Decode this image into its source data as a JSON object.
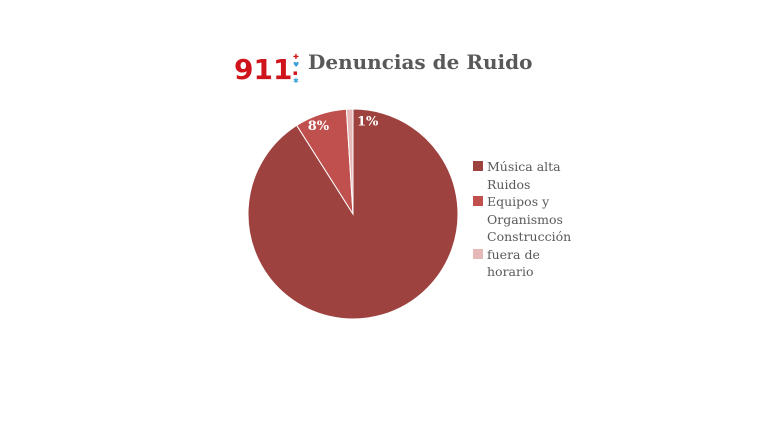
{
  "logo_text": "911",
  "chart_data": {
    "type": "pie",
    "title": "Denuncias de Ruido",
    "categories": [
      "Música alta",
      "Ruidos Equipos y Organismos",
      "Construcción fuera de horario"
    ],
    "values": [
      91,
      8,
      1
    ],
    "data_labels": [
      "",
      "8%",
      "1%"
    ],
    "colors": [
      "#9e4240",
      "#c0504d",
      "#e6b9b8"
    ],
    "start_angle": "12 o'clock, clockwise",
    "legend_position": "right",
    "legend_lines": [
      {
        "text": "Música alta",
        "swatch": 0
      },
      {
        "text": "Ruidos",
        "swatch": null
      },
      {
        "text": "Equipos y",
        "swatch": 1
      },
      {
        "text": "Organismos",
        "swatch": null
      },
      {
        "text": "Construcción",
        "swatch": null
      },
      {
        "text": "fuera de",
        "swatch": 2
      },
      {
        "text": "horario",
        "swatch": null
      }
    ]
  }
}
